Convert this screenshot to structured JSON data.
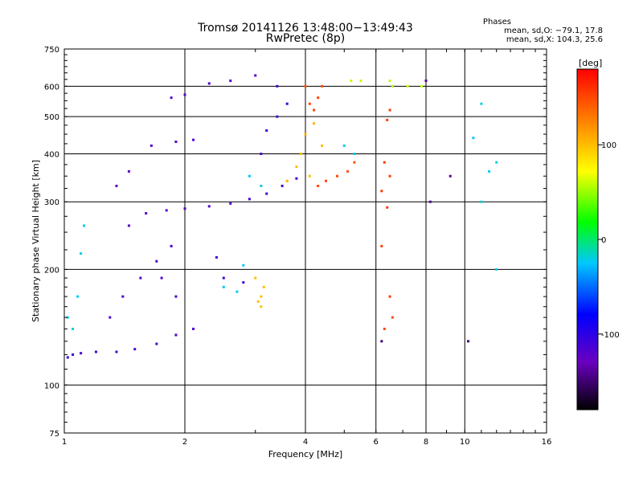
{
  "header": {
    "title_line1": "Tromsø 20141126 13:48:00−13:49:43",
    "title_line2": "RwPretec (8p)",
    "stats_title": "Phases",
    "stats_line1": "mean, sd,O: −79.1, 17.8",
    "stats_line2": "mean, sd,X: 104.3, 25.6"
  },
  "chart_data": {
    "type": "scatter",
    "title": "Tromsø 20141126 13:48:00−13:49:43",
    "subtitle": "RwPretec (8p)",
    "xlabel": "Frequency [MHz]",
    "ylabel": "Stationary phase Virtual Height [km]",
    "xscale": "log",
    "yscale": "log",
    "xlim": [
      1,
      16
    ],
    "ylim": [
      75,
      750
    ],
    "xticks": [
      1,
      2,
      4,
      6,
      8,
      10,
      16
    ],
    "yticks": [
      75,
      100,
      200,
      300,
      400,
      500,
      600,
      750
    ],
    "grid": true,
    "colorbar": {
      "label": "[deg]",
      "range": [
        -180,
        180
      ],
      "ticks": [
        100,
        0,
        -100
      ]
    },
    "series": [
      {
        "values": [
          [
            1.02,
            118,
            -110
          ],
          [
            1.05,
            120,
            -110
          ],
          [
            1.1,
            121,
            -110
          ],
          [
            1.2,
            122,
            -110
          ],
          [
            1.35,
            122,
            -115
          ],
          [
            1.5,
            124,
            -115
          ],
          [
            1.7,
            128,
            -115
          ],
          [
            1.9,
            135,
            -115
          ],
          [
            2.1,
            140,
            -112
          ],
          [
            1.3,
            150,
            -115
          ],
          [
            1.4,
            170,
            -118
          ],
          [
            1.55,
            190,
            -118
          ],
          [
            1.7,
            210,
            -116
          ],
          [
            1.85,
            230,
            -115
          ],
          [
            1.45,
            260,
            -120
          ],
          [
            1.6,
            280,
            -122
          ],
          [
            1.8,
            285,
            -122
          ],
          [
            2.0,
            288,
            -120
          ],
          [
            2.3,
            292,
            -118
          ],
          [
            2.6,
            297,
            -116
          ],
          [
            2.9,
            305,
            -114
          ],
          [
            3.2,
            315,
            -112
          ],
          [
            3.5,
            330,
            -110
          ],
          [
            3.8,
            345,
            -108
          ],
          [
            1.35,
            330,
            -125
          ],
          [
            1.45,
            360,
            -125
          ],
          [
            1.65,
            420,
            -120
          ],
          [
            1.9,
            430,
            -118
          ],
          [
            2.1,
            435,
            -118
          ],
          [
            1.85,
            560,
            -120
          ],
          [
            2.0,
            570,
            -118
          ],
          [
            2.3,
            610,
            -120
          ],
          [
            2.6,
            620,
            -118
          ],
          [
            3.0,
            640,
            -120
          ],
          [
            3.1,
            400,
            -115
          ],
          [
            3.2,
            460,
            -112
          ],
          [
            3.4,
            500,
            -110
          ],
          [
            3.6,
            540,
            -108
          ],
          [
            3.4,
            600,
            -110
          ],
          [
            2.5,
            190,
            -112
          ],
          [
            2.8,
            185,
            -110
          ],
          [
            2.4,
            215,
            -112
          ],
          [
            1.75,
            190,
            -115
          ],
          [
            1.9,
            170,
            -115
          ]
        ]
      },
      {
        "values": [
          [
            1.02,
            150,
            -20
          ],
          [
            1.05,
            140,
            -20
          ],
          [
            1.08,
            170,
            -22
          ],
          [
            1.1,
            220,
            -20
          ],
          [
            1.12,
            260,
            -20
          ],
          [
            2.5,
            180,
            -25
          ],
          [
            2.7,
            175,
            -25
          ],
          [
            2.8,
            205,
            -25
          ],
          [
            2.9,
            350,
            -25
          ],
          [
            3.1,
            330,
            -22
          ],
          [
            10.5,
            440,
            -25
          ],
          [
            11.0,
            300,
            -20
          ],
          [
            11.5,
            360,
            -25
          ],
          [
            12.0,
            380,
            -20
          ],
          [
            12.0,
            200,
            -20
          ],
          [
            11.0,
            540,
            -20
          ],
          [
            5.0,
            420,
            -20
          ],
          [
            5.3,
            400,
            -25
          ]
        ]
      },
      {
        "values": [
          [
            3.05,
            165,
            100
          ],
          [
            3.1,
            170,
            100
          ],
          [
            3.15,
            180,
            100
          ],
          [
            3.1,
            160,
            98
          ],
          [
            3.0,
            190,
            100
          ],
          [
            3.8,
            370,
            100
          ],
          [
            3.9,
            400,
            100
          ],
          [
            4.0,
            450,
            105
          ],
          [
            4.2,
            480,
            102
          ],
          [
            4.4,
            420,
            100
          ],
          [
            3.6,
            340,
            105
          ],
          [
            4.1,
            350,
            100
          ]
        ]
      },
      {
        "values": [
          [
            4.3,
            330,
            150
          ],
          [
            4.5,
            340,
            150
          ],
          [
            4.8,
            350,
            150
          ],
          [
            5.1,
            360,
            148
          ],
          [
            5.3,
            380,
            145
          ],
          [
            4.2,
            520,
            150
          ],
          [
            4.3,
            560,
            150
          ],
          [
            4.4,
            600,
            148
          ],
          [
            4.0,
            600,
            145
          ],
          [
            4.1,
            540,
            150
          ],
          [
            6.3,
            380,
            155
          ],
          [
            6.5,
            350,
            155
          ],
          [
            6.2,
            320,
            155
          ],
          [
            6.4,
            290,
            155
          ],
          [
            6.2,
            230,
            155
          ],
          [
            6.5,
            170,
            155
          ],
          [
            6.6,
            150,
            150
          ],
          [
            6.3,
            140,
            150
          ],
          [
            6.4,
            490,
            155
          ],
          [
            6.5,
            520,
            155
          ]
        ]
      },
      {
        "values": [
          [
            5.5,
            620,
            60
          ],
          [
            6.5,
            620,
            60
          ],
          [
            6.6,
            600,
            55
          ],
          [
            7.2,
            600,
            60
          ],
          [
            7.8,
            600,
            60
          ],
          [
            5.2,
            620,
            60
          ]
        ]
      },
      {
        "values": [
          [
            8.0,
            620,
            -140
          ],
          [
            8.2,
            300,
            -140
          ],
          [
            9.2,
            350,
            -140
          ],
          [
            6.2,
            130,
            -150
          ],
          [
            10.2,
            130,
            -150
          ]
        ]
      }
    ]
  }
}
